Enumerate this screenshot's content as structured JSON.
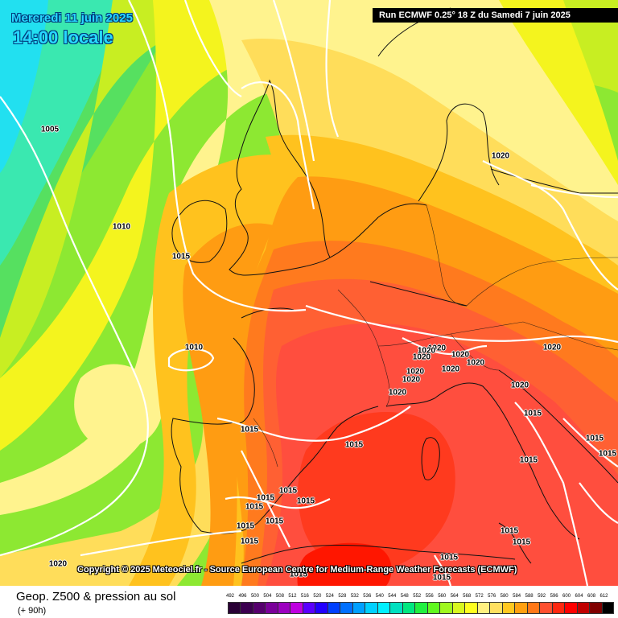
{
  "header": {
    "date": "Mercredi 11 juin 2025",
    "time": "14:00 locale",
    "run": "Run ECMWF 0.25° 18 Z du Samedi 7 juin 2025"
  },
  "copyright": "Copyright © 2025 Meteociel.fr - Source European Centre for Medium-Range Weather Forecasts (ECMWF)",
  "footer": {
    "parameter": "Geop. Z500 & pression au sol",
    "horizon": "(+ 90h)"
  },
  "colors": {
    "c1": "#22e0f0",
    "c2": "#3ae8b0",
    "c3": "#56e060",
    "c4": "#8de832",
    "c5": "#c8ee22",
    "c6": "#f4f41e",
    "c7": "#fff38e",
    "c8": "#ffdd5a",
    "c9": "#ffc21e",
    "c10": "#ff9c12",
    "c11": "#ff7a1e",
    "c12": "#ff6033",
    "c13": "#ff4e3e",
    "c14": "#ff3a1e",
    "c15": "#ff1600",
    "isobar": "#ffffff",
    "coast": "#111111"
  },
  "isobars": [
    {
      "label": "1005"
    },
    {
      "label": "1010"
    },
    {
      "label": "1015"
    },
    {
      "label": "1010"
    },
    {
      "label": "1015"
    },
    {
      "label": "1020"
    },
    {
      "label": "1020"
    },
    {
      "label": "1020"
    },
    {
      "label": "1020"
    },
    {
      "label": "1020"
    },
    {
      "label": "1020"
    },
    {
      "label": "1020"
    },
    {
      "label": "1020"
    },
    {
      "label": "1020"
    },
    {
      "label": "1020"
    },
    {
      "label": "1020"
    },
    {
      "label": "1020"
    },
    {
      "label": "1015"
    },
    {
      "label": "1015"
    },
    {
      "label": "1015"
    },
    {
      "label": "1015"
    },
    {
      "label": "1015"
    },
    {
      "label": "1015"
    },
    {
      "label": "1015"
    },
    {
      "label": "1015"
    },
    {
      "label": "1015"
    },
    {
      "label": "1015"
    },
    {
      "label": "1015"
    },
    {
      "label": "1015"
    },
    {
      "label": "1015"
    },
    {
      "label": "1015"
    },
    {
      "label": "1015"
    },
    {
      "label": "1015"
    },
    {
      "label": "1015"
    },
    {
      "label": "1020"
    }
  ],
  "scale": {
    "ticks": [
      "492",
      "496",
      "500",
      "504",
      "508",
      "512",
      "516",
      "520",
      "524",
      "528",
      "532",
      "536",
      "540",
      "544",
      "548",
      "552",
      "556",
      "560",
      "564",
      "568",
      "572",
      "576",
      "580",
      "584",
      "588",
      "592",
      "596",
      "600",
      "604",
      "608",
      "612"
    ],
    "colors": [
      "#2a0036",
      "#3c0050",
      "#56006e",
      "#7a009a",
      "#9c00c0",
      "#be00e0",
      "#5a00ff",
      "#2200ff",
      "#0040ff",
      "#0070ff",
      "#00a0ff",
      "#00d0ff",
      "#00f0ff",
      "#00e0c0",
      "#00e880",
      "#20f040",
      "#60f820",
      "#a0f820",
      "#d8f820",
      "#ffff20",
      "#fff080",
      "#ffe060",
      "#ffc820",
      "#ffa010",
      "#ff7818",
      "#ff5030",
      "#ff2810",
      "#ff0000",
      "#c00000",
      "#800000",
      "#000000"
    ]
  }
}
